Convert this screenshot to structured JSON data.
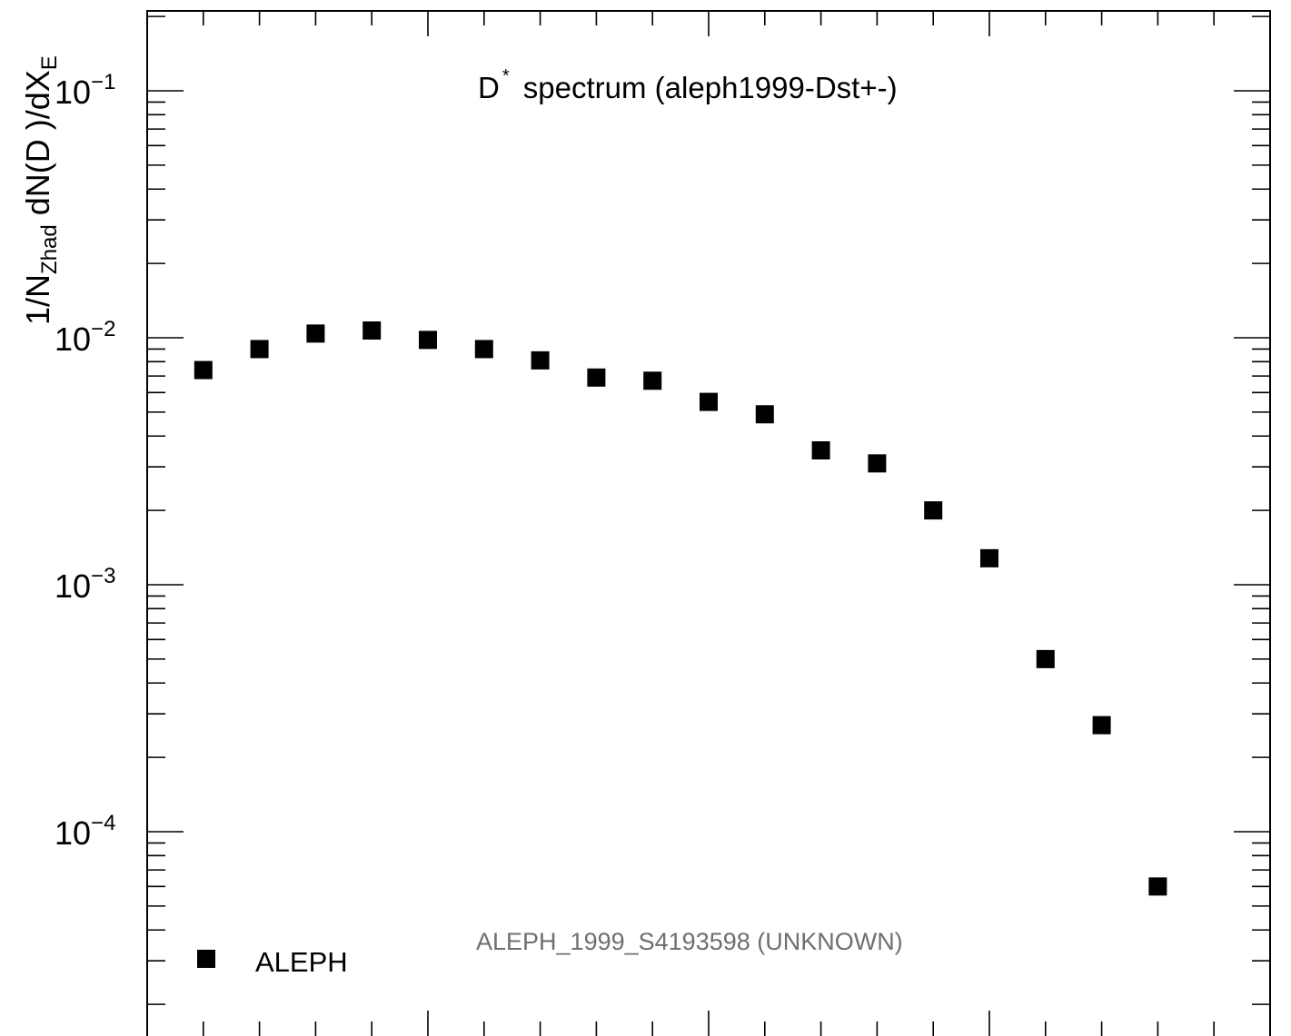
{
  "chart_data": {
    "type": "scatter",
    "title": {
      "main": "D",
      "superscript": "*",
      "rest": " spectrum (aleph1999-Dst+-)"
    },
    "watermark": "ALEPH_1999_S4193598 (UNKNOWN)",
    "ylabel": {
      "part1": "1/N",
      "sub1": "Zhad",
      "part2": " dN(D )/dX",
      "sub2": "E"
    },
    "yscale": "log",
    "ylim": [
      1.5e-05,
      0.2
    ],
    "xlim": [
      0.0,
      1.0
    ],
    "ytick_labels": [
      {
        "base": "10",
        "exp": "−1",
        "value": 0.1
      },
      {
        "base": "10",
        "exp": "−2",
        "value": 0.01
      },
      {
        "base": "10",
        "exp": "−3",
        "value": 0.001
      },
      {
        "base": "10",
        "exp": "−4",
        "value": 0.0001
      }
    ],
    "grid": false,
    "legend_position": "bottom-left",
    "series": [
      {
        "name": "ALEPH",
        "marker": "square",
        "color": "#000000",
        "x": [
          0.05,
          0.1,
          0.15,
          0.2,
          0.25,
          0.3,
          0.35,
          0.4,
          0.45,
          0.5,
          0.55,
          0.6,
          0.65,
          0.7,
          0.75,
          0.8,
          0.85,
          0.9
        ],
        "y": [
          0.0074,
          0.009,
          0.0104,
          0.0107,
          0.0098,
          0.009,
          0.0081,
          0.0069,
          0.0067,
          0.0055,
          0.0049,
          0.0035,
          0.0031,
          0.002,
          0.00128,
          0.0005,
          0.00027,
          6e-05
        ]
      }
    ]
  }
}
